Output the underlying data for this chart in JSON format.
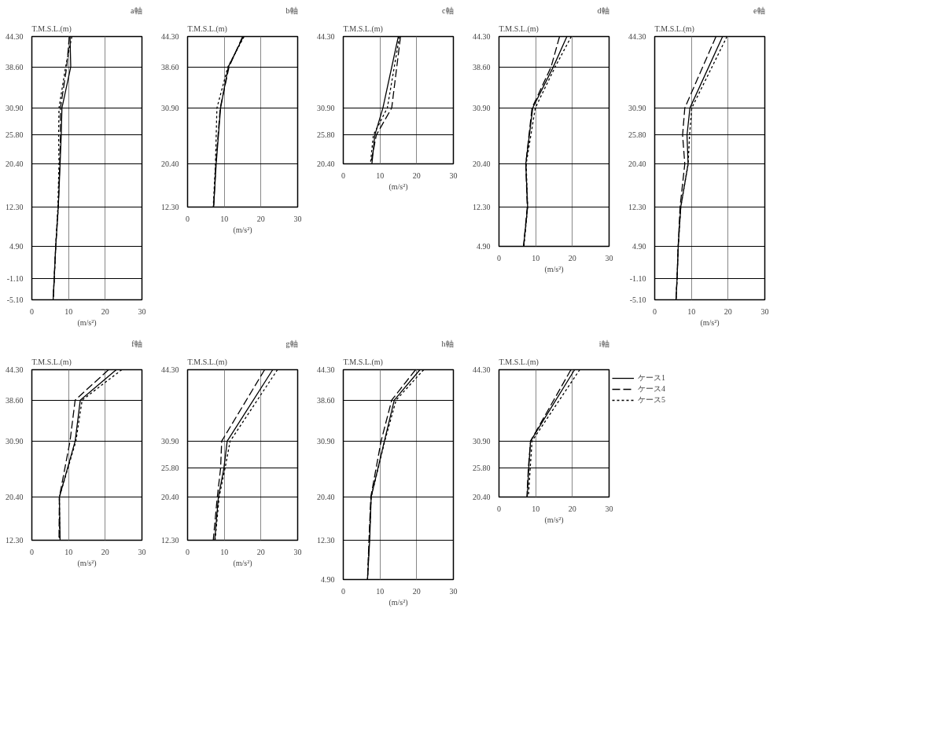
{
  "chart_data": [
    {
      "type": "line",
      "title": "a軸",
      "ylabel": "T.M.S.L.(m)",
      "xlabel": "(m/s²)",
      "xlim": [
        0,
        30
      ],
      "xticks": [
        0,
        10,
        20,
        30
      ],
      "ylim": [
        -5.1,
        44.3
      ],
      "yticks": [
        {
          "value": 44.3,
          "label": "44.30"
        },
        {
          "value": 38.6,
          "label": "38.60"
        },
        {
          "value": 30.9,
          "label": "30.90"
        },
        {
          "value": 25.8,
          "label": "25.80"
        },
        {
          "value": 20.4,
          "label": "20.40"
        },
        {
          "value": 12.3,
          "label": "12.30"
        },
        {
          "value": 4.9,
          "label": "4.90"
        },
        {
          "value": -1.1,
          "label": "-1.10"
        },
        {
          "value": -5.1,
          "label": "-5.10"
        }
      ],
      "grid": true,
      "legend": false,
      "series": [
        {
          "color": "#000000",
          "line_style": "solid",
          "x": [
            10.4,
            10.6,
            8.2,
            8.0,
            7.7,
            7.2,
            6.5,
            6.1,
            5.8
          ],
          "values": [
            44.3,
            38.6,
            30.9,
            25.8,
            20.4,
            12.3,
            4.9,
            -1.1,
            -5.1
          ]
        },
        {
          "color": "#000000",
          "line_style": "dashed",
          "x": [
            10.2,
            9.5,
            7.8,
            7.8,
            7.6,
            7.2,
            6.5,
            6.1,
            5.8
          ],
          "values": [
            44.3,
            38.6,
            30.9,
            25.8,
            20.4,
            12.3,
            4.9,
            -1.1,
            -5.1
          ]
        },
        {
          "color": "#000000",
          "line_style": "dotted",
          "x": [
            10.9,
            9.2,
            7.4,
            7.3,
            7.4,
            7.1,
            6.5,
            6.1,
            5.8
          ],
          "values": [
            44.3,
            38.6,
            30.9,
            25.8,
            20.4,
            12.3,
            4.9,
            -1.1,
            -5.1
          ]
        }
      ]
    },
    {
      "type": "line",
      "title": "b軸",
      "ylabel": "T.M.S.L.(m)",
      "xlabel": "(m/s²)",
      "xlim": [
        0,
        30
      ],
      "xticks": [
        0,
        10,
        20,
        30
      ],
      "ylim": [
        12.3,
        44.3
      ],
      "yticks": [
        {
          "value": 44.3,
          "label": "44.30"
        },
        {
          "value": 38.6,
          "label": "38.60"
        },
        {
          "value": 30.9,
          "label": "30.90"
        },
        {
          "value": 20.4,
          "label": "20.40"
        },
        {
          "value": 12.3,
          "label": "12.30"
        }
      ],
      "grid": true,
      "legend": false,
      "series": [
        {
          "color": "#000000",
          "line_style": "solid",
          "x": [
            15.2,
            11.1,
            9.0,
            7.8,
            7.1
          ],
          "values": [
            44.3,
            38.6,
            30.9,
            20.4,
            12.3
          ]
        },
        {
          "color": "#000000",
          "line_style": "dashed",
          "x": [
            15.0,
            11.3,
            8.9,
            7.7,
            7.1
          ],
          "values": [
            44.3,
            38.6,
            30.9,
            20.4,
            12.3
          ]
        },
        {
          "color": "#000000",
          "line_style": "dotted",
          "x": [
            15.4,
            11.0,
            8.0,
            7.6,
            7.0
          ],
          "values": [
            44.3,
            38.6,
            30.9,
            20.4,
            12.3
          ]
        }
      ]
    },
    {
      "type": "line",
      "title": "c軸",
      "ylabel": "T.M.S.L.(m)",
      "xlabel": "(m/s²)",
      "xlim": [
        0,
        30
      ],
      "xticks": [
        0,
        10,
        20,
        30
      ],
      "ylim": [
        20.4,
        44.3
      ],
      "yticks": [
        {
          "value": 44.3,
          "label": "44.30"
        },
        {
          "value": 30.9,
          "label": "30.90"
        },
        {
          "value": 25.8,
          "label": "25.80"
        },
        {
          "value": 20.4,
          "label": "20.40"
        }
      ],
      "grid": true,
      "legend": false,
      "series": [
        {
          "color": "#000000",
          "line_style": "solid",
          "x": [
            15.0,
            10.8,
            8.6,
            7.8
          ],
          "values": [
            44.3,
            30.9,
            25.8,
            20.4
          ]
        },
        {
          "color": "#000000",
          "line_style": "dashed",
          "x": [
            15.6,
            13.2,
            9.0,
            7.5
          ],
          "values": [
            44.3,
            30.9,
            25.8,
            20.4
          ]
        },
        {
          "color": "#000000",
          "line_style": "dotted",
          "x": [
            15.3,
            12.0,
            8.2,
            7.4
          ],
          "values": [
            44.3,
            30.9,
            25.8,
            20.4
          ]
        }
      ]
    },
    {
      "type": "line",
      "title": "d軸",
      "ylabel": "T.M.S.L.(m)",
      "xlabel": "(m/s²)",
      "xlim": [
        0,
        30
      ],
      "xticks": [
        0,
        10,
        20,
        30
      ],
      "ylim": [
        4.9,
        44.3
      ],
      "yticks": [
        {
          "value": 44.3,
          "label": "44.30"
        },
        {
          "value": 38.6,
          "label": "38.60"
        },
        {
          "value": 30.9,
          "label": "30.90"
        },
        {
          "value": 20.4,
          "label": "20.40"
        },
        {
          "value": 12.3,
          "label": "12.30"
        },
        {
          "value": 4.9,
          "label": "4.90"
        }
      ],
      "grid": true,
      "legend": false,
      "series": [
        {
          "color": "#000000",
          "line_style": "solid",
          "x": [
            18.5,
            14.8,
            9.2,
            7.3,
            7.8,
            6.7
          ],
          "values": [
            44.3,
            38.6,
            30.9,
            20.4,
            12.3,
            4.9
          ]
        },
        {
          "color": "#000000",
          "line_style": "dashed",
          "x": [
            16.5,
            14.2,
            9.0,
            7.3,
            7.7,
            6.7
          ],
          "values": [
            44.3,
            38.6,
            30.9,
            20.4,
            12.3,
            4.9
          ]
        },
        {
          "color": "#000000",
          "line_style": "dotted",
          "x": [
            19.7,
            15.3,
            9.9,
            7.4,
            7.8,
            6.8
          ],
          "values": [
            44.3,
            38.6,
            30.9,
            20.4,
            12.3,
            4.9
          ]
        }
      ]
    },
    {
      "type": "line",
      "title": "e軸",
      "ylabel": "T.M.S.L.(m)",
      "xlabel": "(m/s²)",
      "xlim": [
        0,
        30
      ],
      "xticks": [
        0,
        10,
        20,
        30
      ],
      "ylim": [
        -5.1,
        44.3
      ],
      "yticks": [
        {
          "value": 44.3,
          "label": "44.30"
        },
        {
          "value": 30.9,
          "label": "30.90"
        },
        {
          "value": 25.8,
          "label": "25.80"
        },
        {
          "value": 20.4,
          "label": "20.40"
        },
        {
          "value": 12.3,
          "label": "12.30"
        },
        {
          "value": 4.9,
          "label": "4.90"
        },
        {
          "value": -1.1,
          "label": "-1.10"
        },
        {
          "value": -5.1,
          "label": "-5.10"
        }
      ],
      "grid": true,
      "legend": false,
      "series": [
        {
          "color": "#000000",
          "line_style": "solid",
          "x": [
            18.5,
            9.6,
            8.8,
            9.1,
            7.1,
            6.4,
            6.1,
            5.8
          ],
          "values": [
            44.3,
            30.9,
            25.8,
            20.4,
            12.3,
            4.9,
            -1.1,
            -5.1
          ]
        },
        {
          "color": "#000000",
          "line_style": "dashed",
          "x": [
            16.7,
            8.2,
            7.6,
            8.2,
            6.9,
            6.4,
            6.1,
            5.8
          ],
          "values": [
            44.3,
            30.9,
            25.8,
            20.4,
            12.3,
            4.9,
            -1.1,
            -5.1
          ]
        },
        {
          "color": "#000000",
          "line_style": "dotted",
          "x": [
            19.7,
            10.1,
            9.5,
            9.1,
            7.1,
            6.4,
            6.1,
            5.8
          ],
          "values": [
            44.3,
            30.9,
            25.8,
            20.4,
            12.3,
            4.9,
            -1.1,
            -5.1
          ]
        }
      ]
    },
    {
      "type": "line",
      "title": "f軸",
      "ylabel": "T.M.S.L.(m)",
      "xlabel": "(m/s²)",
      "xlim": [
        0,
        30
      ],
      "xticks": [
        0,
        10,
        20,
        30
      ],
      "ylim": [
        12.3,
        44.3
      ],
      "yticks": [
        {
          "value": 44.3,
          "label": "44.30"
        },
        {
          "value": 38.6,
          "label": "38.60"
        },
        {
          "value": 30.9,
          "label": "30.90"
        },
        {
          "value": 20.4,
          "label": "20.40"
        },
        {
          "value": 12.3,
          "label": "12.30"
        }
      ],
      "grid": true,
      "legend": false,
      "series": [
        {
          "color": "#000000",
          "line_style": "solid",
          "x": [
            23.0,
            13.2,
            11.8,
            7.5,
            7.7
          ],
          "values": [
            44.3,
            38.6,
            30.9,
            20.4,
            12.3
          ]
        },
        {
          "color": "#000000",
          "line_style": "dashed",
          "x": [
            20.9,
            11.8,
            10.4,
            7.5,
            7.4
          ],
          "values": [
            44.3,
            38.6,
            30.9,
            20.4,
            12.3
          ]
        },
        {
          "color": "#000000",
          "line_style": "dotted",
          "x": [
            24.5,
            13.7,
            12.0,
            7.5,
            7.6
          ],
          "values": [
            44.3,
            38.6,
            30.9,
            20.4,
            12.3
          ]
        }
      ]
    },
    {
      "type": "line",
      "title": "g軸",
      "ylabel": "T.M.S.L.(m)",
      "xlabel": "(m/s²)",
      "xlim": [
        0,
        30
      ],
      "xticks": [
        0,
        10,
        20,
        30
      ],
      "ylim": [
        12.3,
        44.3
      ],
      "yticks": [
        {
          "value": 44.3,
          "label": "44.30"
        },
        {
          "value": 30.9,
          "label": "30.90"
        },
        {
          "value": 25.8,
          "label": "25.80"
        },
        {
          "value": 20.4,
          "label": "20.40"
        },
        {
          "value": 12.3,
          "label": "12.30"
        }
      ],
      "grid": true,
      "legend": false,
      "series": [
        {
          "color": "#000000",
          "line_style": "solid",
          "x": [
            23.2,
            10.8,
            9.9,
            8.4,
            7.4
          ],
          "values": [
            44.3,
            30.9,
            25.8,
            20.4,
            12.3
          ]
        },
        {
          "color": "#000000",
          "line_style": "dashed",
          "x": [
            21.0,
            9.3,
            9.0,
            8.1,
            7.0
          ],
          "values": [
            44.3,
            30.9,
            25.8,
            20.4,
            12.3
          ]
        },
        {
          "color": "#000000",
          "line_style": "dotted",
          "x": [
            24.5,
            11.6,
            10.2,
            8.6,
            7.5
          ],
          "values": [
            44.3,
            30.9,
            25.8,
            20.4,
            12.3
          ]
        }
      ]
    },
    {
      "type": "line",
      "title": "h軸",
      "ylabel": "T.M.S.L.(m)",
      "xlabel": "(m/s²)",
      "xlim": [
        0,
        30
      ],
      "xticks": [
        0,
        10,
        20,
        30
      ],
      "ylim": [
        4.9,
        44.3
      ],
      "yticks": [
        {
          "value": 44.3,
          "label": "44.30"
        },
        {
          "value": 38.6,
          "label": "38.60"
        },
        {
          "value": 30.9,
          "label": "30.90"
        },
        {
          "value": 20.4,
          "label": "20.40"
        },
        {
          "value": 12.3,
          "label": "12.30"
        },
        {
          "value": 4.9,
          "label": "4.90"
        }
      ],
      "grid": true,
      "legend": false,
      "series": [
        {
          "color": "#000000",
          "line_style": "solid",
          "x": [
            20.9,
            13.9,
            11.2,
            7.6,
            7.2,
            6.6
          ],
          "values": [
            44.3,
            38.6,
            30.9,
            20.4,
            12.3,
            4.9
          ]
        },
        {
          "color": "#000000",
          "line_style": "dashed",
          "x": [
            19.7,
            13.2,
            10.3,
            7.5,
            7.0,
            6.6
          ],
          "values": [
            44.3,
            38.6,
            30.9,
            20.4,
            12.3,
            4.9
          ]
        },
        {
          "color": "#000000",
          "line_style": "dotted",
          "x": [
            21.9,
            14.4,
            11.3,
            7.6,
            7.1,
            6.6
          ],
          "values": [
            44.3,
            38.6,
            30.9,
            20.4,
            12.3,
            4.9
          ]
        }
      ]
    },
    {
      "type": "line",
      "title": "i軸",
      "ylabel": "T.M.S.L.(m)",
      "xlabel": "(m/s²)",
      "xlim": [
        0,
        30
      ],
      "xticks": [
        0,
        10,
        20,
        30
      ],
      "ylim": [
        20.4,
        44.3
      ],
      "yticks": [
        {
          "value": 44.3,
          "label": "44.30"
        },
        {
          "value": 30.9,
          "label": "30.90"
        },
        {
          "value": 25.8,
          "label": "25.80"
        },
        {
          "value": 20.4,
          "label": "20.40"
        }
      ],
      "grid": true,
      "legend": "right",
      "series": [
        {
          "name": "ケース1",
          "color": "#000000",
          "line_style": "solid",
          "x": [
            20.6,
            8.6,
            8.1,
            7.7
          ],
          "values": [
            44.3,
            30.9,
            25.8,
            20.4
          ]
        },
        {
          "name": "ケース4",
          "color": "#000000",
          "line_style": "dashed",
          "x": [
            19.6,
            8.6,
            8.0,
            7.6
          ],
          "values": [
            44.3,
            30.9,
            25.8,
            20.4
          ]
        },
        {
          "name": "ケース5",
          "color": "#000000",
          "line_style": "dotted",
          "x": [
            22.0,
            9.0,
            8.5,
            8.0
          ],
          "values": [
            44.3,
            30.9,
            25.8,
            20.4
          ]
        }
      ]
    }
  ]
}
